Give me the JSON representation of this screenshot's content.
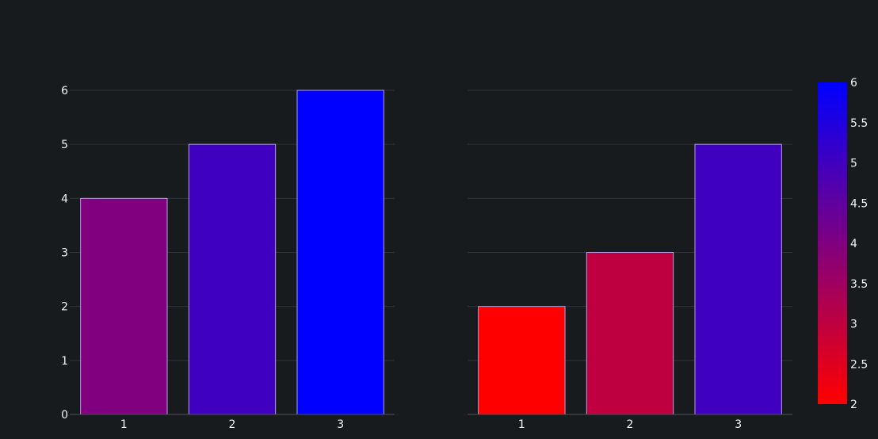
{
  "chart_data": [
    {
      "type": "bar",
      "categories": [
        "1",
        "2",
        "3"
      ],
      "values": [
        4,
        5,
        6
      ],
      "ylim": [
        0,
        6
      ],
      "yticks": [
        "0",
        "1",
        "2",
        "3",
        "4",
        "5",
        "6"
      ],
      "grid": true,
      "title": "",
      "xlabel": "",
      "ylabel": ""
    },
    {
      "type": "bar",
      "categories": [
        "1",
        "2",
        "3"
      ],
      "values": [
        2,
        3,
        5
      ],
      "ylim": [
        0,
        6
      ],
      "grid": true,
      "title": "",
      "xlabel": "",
      "ylabel": ""
    }
  ],
  "colorbar": {
    "range": [
      2,
      6
    ],
    "ticks": [
      "2",
      "2.5",
      "3",
      "3.5",
      "4",
      "4.5",
      "5",
      "5.5",
      "6"
    ],
    "colors": {
      "low": "#ff0000",
      "high": "#0000ff"
    }
  },
  "theme": {
    "background": "#181b1e",
    "grid": "#2e3338",
    "axis_line": "#4b5157",
    "bar_outline": "#b3a3e0",
    "text": "#f2f5fa"
  }
}
